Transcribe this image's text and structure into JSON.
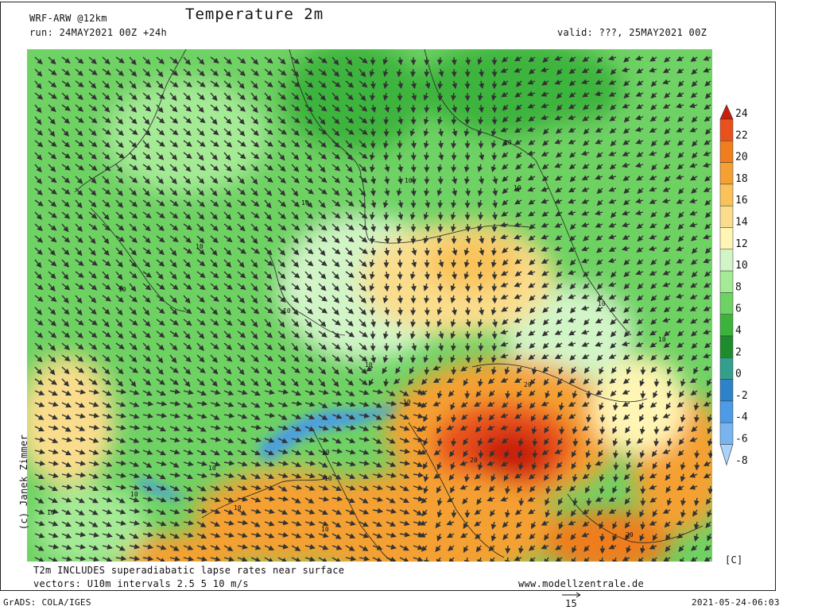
{
  "header": {
    "model": "WRF-ARW @12km",
    "title": "Temperature 2m",
    "run": "run: 24MAY2021 00Z +24h",
    "valid": "valid: ???, 25MAY2021 00Z"
  },
  "colorbar": {
    "unit": "[C]",
    "levels": [
      "24",
      "22",
      "20",
      "18",
      "16",
      "14",
      "12",
      "10",
      "8",
      "6",
      "4",
      "2",
      "0",
      "-2",
      "-4",
      "-6",
      "-8"
    ],
    "colors": [
      "#c81e0a",
      "#e8501e",
      "#f07d1e",
      "#f5a032",
      "#fac35a",
      "#fadd8c",
      "#fff5b4",
      "#d2f5c8",
      "#a5eb96",
      "#6ed264",
      "#3cb43c",
      "#1e8c2d",
      "#32a08c",
      "#2d82c8",
      "#4b9be6",
      "#78b4f0",
      "#aad2fa"
    ]
  },
  "map": {
    "contour_labels": [
      "10",
      "10",
      "10",
      "10",
      "10",
      "10",
      "10",
      "10",
      "10",
      "10",
      "10",
      "10",
      "10",
      "10",
      "10",
      "20",
      "20",
      "20",
      "10",
      "10",
      "10"
    ]
  },
  "footer": {
    "note1": "T2m INCLUDES superadiabatic lapse rates near surface",
    "note2": "vectors: U10m intervals 2.5 5 10 m/s",
    "website": "www.modellzentrale.de",
    "grads": "GrADS: COLA/IGES",
    "timestamp": "2021-05-24-06:03",
    "ref_vector": "15",
    "copyright": "(c) Janek Zimmer"
  }
}
